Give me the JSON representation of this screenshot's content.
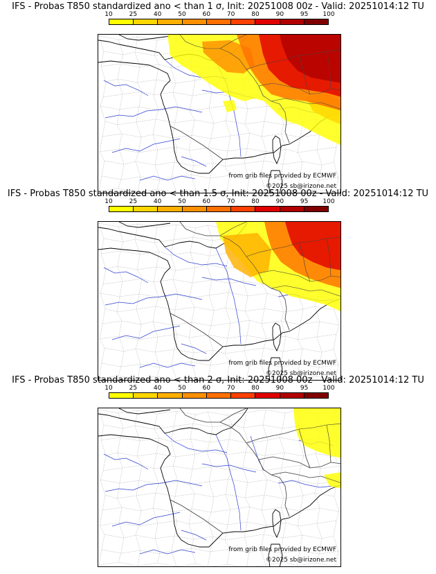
{
  "scale": {
    "ticks": [
      "10",
      "25",
      "40",
      "50",
      "60",
      "70",
      "80",
      "90",
      "95",
      "100"
    ],
    "colors": [
      "#ffff00",
      "#ffd700",
      "#ffb000",
      "#ff9000",
      "#ff7000",
      "#ff4000",
      "#e00000",
      "#b00000",
      "#800000"
    ]
  },
  "panels": [
    {
      "title": "IFS - Probas T850  standardized ano < than 1 σ, Init: 20251008 00z - Valid: 20251014:12 TU",
      "source_note": "from grib files provided by ECMWF",
      "copyright": "©2025 sb@irizone.net",
      "probability_fields": [
        {
          "name": "north-east-max",
          "level": 90
        },
        {
          "name": "east-high",
          "level": 80
        },
        {
          "name": "east-mid",
          "level": 60
        },
        {
          "name": "belgium-mid",
          "level": 50
        },
        {
          "name": "outer-low",
          "level": 10
        },
        {
          "name": "alps-patch",
          "level": 25
        }
      ]
    },
    {
      "title": "IFS - Probas T850  standardized ano < than 1.5 σ, Init: 20251008 00z - Valid: 20251014:12 TU",
      "source_note": "from grib files provided by ECMWF",
      "copyright": "©2025 sb@irizone.net",
      "probability_fields": [
        {
          "name": "east-high",
          "level": 80
        },
        {
          "name": "east-mid",
          "level": 60
        },
        {
          "name": "central-mid",
          "level": 40
        },
        {
          "name": "outer-low",
          "level": 10
        }
      ]
    },
    {
      "title": "IFS - Probas T850  standardized ano < than 2 σ, Init: 20251008 00z - Valid: 20251014:12 TU",
      "source_note": "from grib files provided by ECMWF",
      "copyright": "©2025 sb@irizone.net",
      "probability_fields": [
        {
          "name": "outer-low",
          "level": 10
        },
        {
          "name": "alps-patch",
          "level": 10
        }
      ]
    }
  ]
}
